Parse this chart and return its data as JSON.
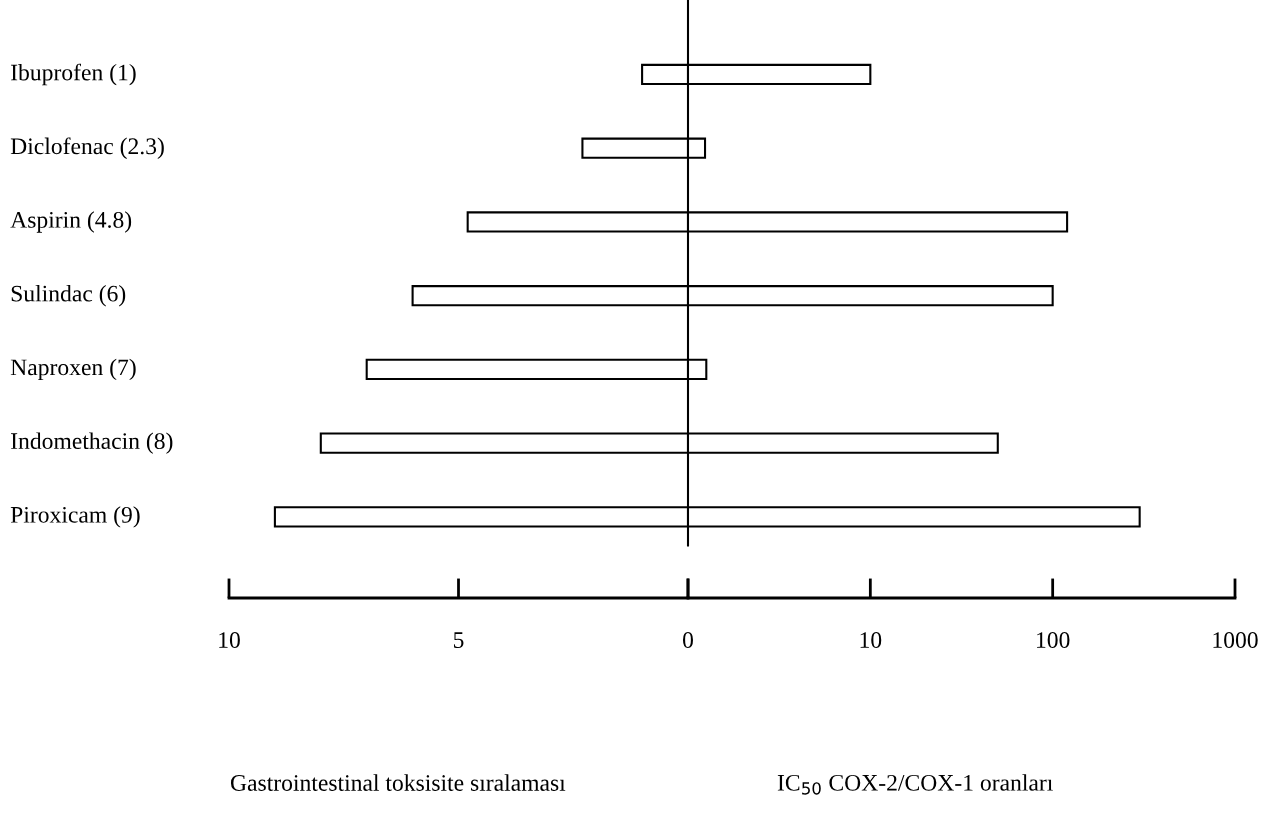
{
  "chart_data": [
    {
      "type": "bar",
      "orientation": "horizontal",
      "categories": [
        "Ibuprofen (1)",
        "Diclofenac (2.3)",
        "Aspirin (4.8)",
        "Sulindac (6)",
        "Naproxen (7)",
        "Indomethacin (8)",
        "Piroxicam (9)"
      ],
      "values": [
        1,
        2.3,
        4.8,
        6,
        7,
        8,
        9
      ],
      "color": "#ffffff",
      "xlim": [
        10,
        0
      ],
      "xticks": [
        10,
        5,
        0
      ],
      "xlabel": "Gastrointestinal toksisite sıralaması",
      "ref_lines": [
        {
          "axis": "x",
          "value": 0
        }
      ]
    },
    {
      "type": "bar",
      "orientation": "horizontal",
      "log": "x",
      "tick_labels": "x",
      "categories": [
        null,
        null,
        null,
        null,
        null,
        null,
        null
      ],
      "values": [
        10,
        1.24,
        120,
        100,
        1.26,
        50,
        300
      ],
      "color": "#ffffff",
      "xlim": [
        1,
        1000
      ],
      "xticks": [
        {
          "value": 1,
          "label": null
        },
        10,
        100,
        1000
      ],
      "xlabel": "IC$_{50}$ COX-2/COX-1 oranları"
    }
  ]
}
